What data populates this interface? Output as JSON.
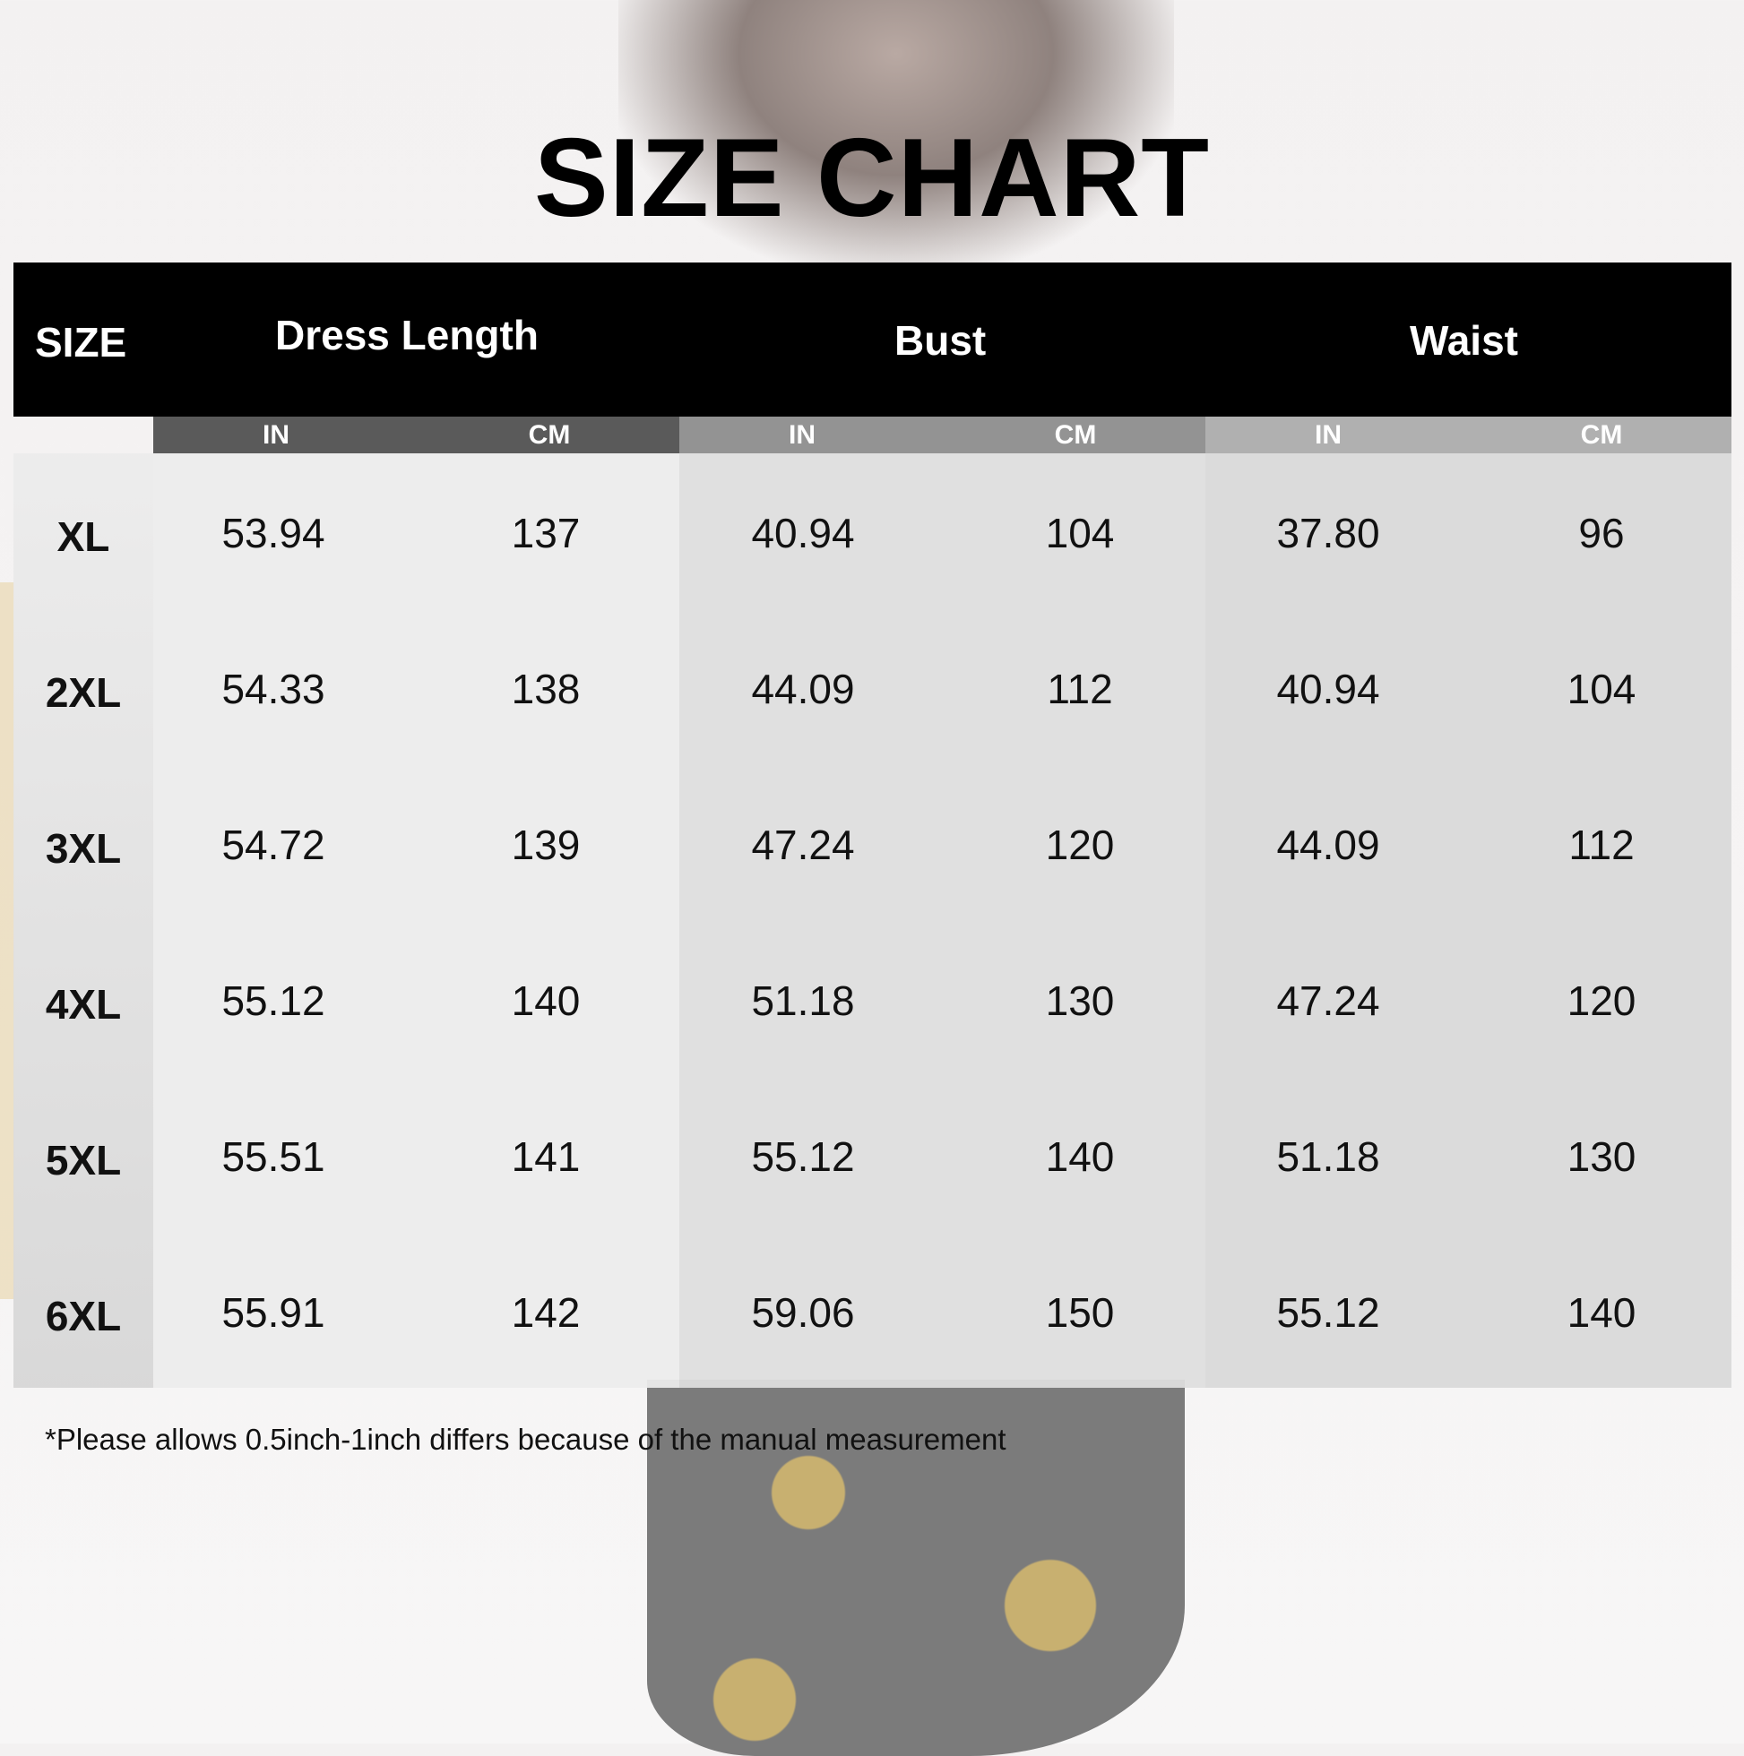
{
  "title": "SIZE CHART",
  "headers": {
    "size": "SIZE",
    "dress_length": "Dress Length",
    "bust": "Bust",
    "waist": "Waist"
  },
  "units": [
    "IN",
    "CM",
    "IN",
    "CM",
    "IN",
    "CM"
  ],
  "colors": {
    "header": "#000000",
    "dress_length_sub": "#5a5a5a",
    "bust_sub": "#939393",
    "waist_sub": "#b0b0b0"
  },
  "rows": [
    {
      "size": "XL",
      "values": [
        "53.94",
        "137",
        "40.94",
        "104",
        "37.80",
        "96"
      ]
    },
    {
      "size": "2XL",
      "values": [
        "54.33",
        "138",
        "44.09",
        "112",
        "40.94",
        "104"
      ]
    },
    {
      "size": "3XL",
      "values": [
        "54.72",
        "139",
        "47.24",
        "120",
        "44.09",
        "112"
      ]
    },
    {
      "size": "4XL",
      "values": [
        "55.12",
        "140",
        "51.18",
        "130",
        "47.24",
        "120"
      ]
    },
    {
      "size": "5XL",
      "values": [
        "55.51",
        "141",
        "55.12",
        "140",
        "51.18",
        "130"
      ]
    },
    {
      "size": "6XL",
      "values": [
        "55.91",
        "142",
        "59.06",
        "150",
        "55.12",
        "140"
      ]
    }
  ],
  "note": "*Please allows 0.5inch-1inch differs because of the manual measurement"
}
